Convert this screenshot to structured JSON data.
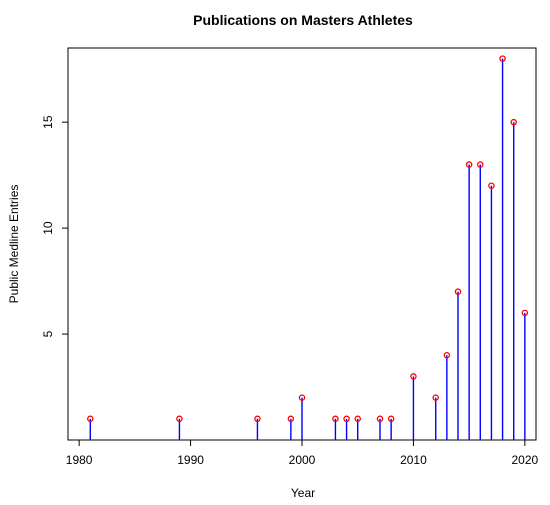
{
  "chart_data": {
    "type": "scatter",
    "title": "Publications on Masters Athletes",
    "xlabel": "Year",
    "ylabel": "Public Medline Entries",
    "xlim": [
      1979,
      2021
    ],
    "ylim": [
      0,
      18.5
    ],
    "xticks": [
      1980,
      1990,
      2000,
      2010,
      2020
    ],
    "yticks": [
      5,
      10,
      15
    ],
    "x": [
      1981,
      1989,
      1996,
      1999,
      2000,
      2003,
      2004,
      2005,
      2007,
      2008,
      2010,
      2012,
      2013,
      2014,
      2015,
      2016,
      2017,
      2018,
      2019,
      2020
    ],
    "y": [
      1,
      1,
      1,
      1,
      2,
      1,
      1,
      1,
      1,
      1,
      3,
      2,
      4,
      7,
      13,
      13,
      12,
      18,
      15,
      6
    ],
    "grid": false,
    "stem_color": "#0000ff",
    "point_color": "#ff0000"
  }
}
